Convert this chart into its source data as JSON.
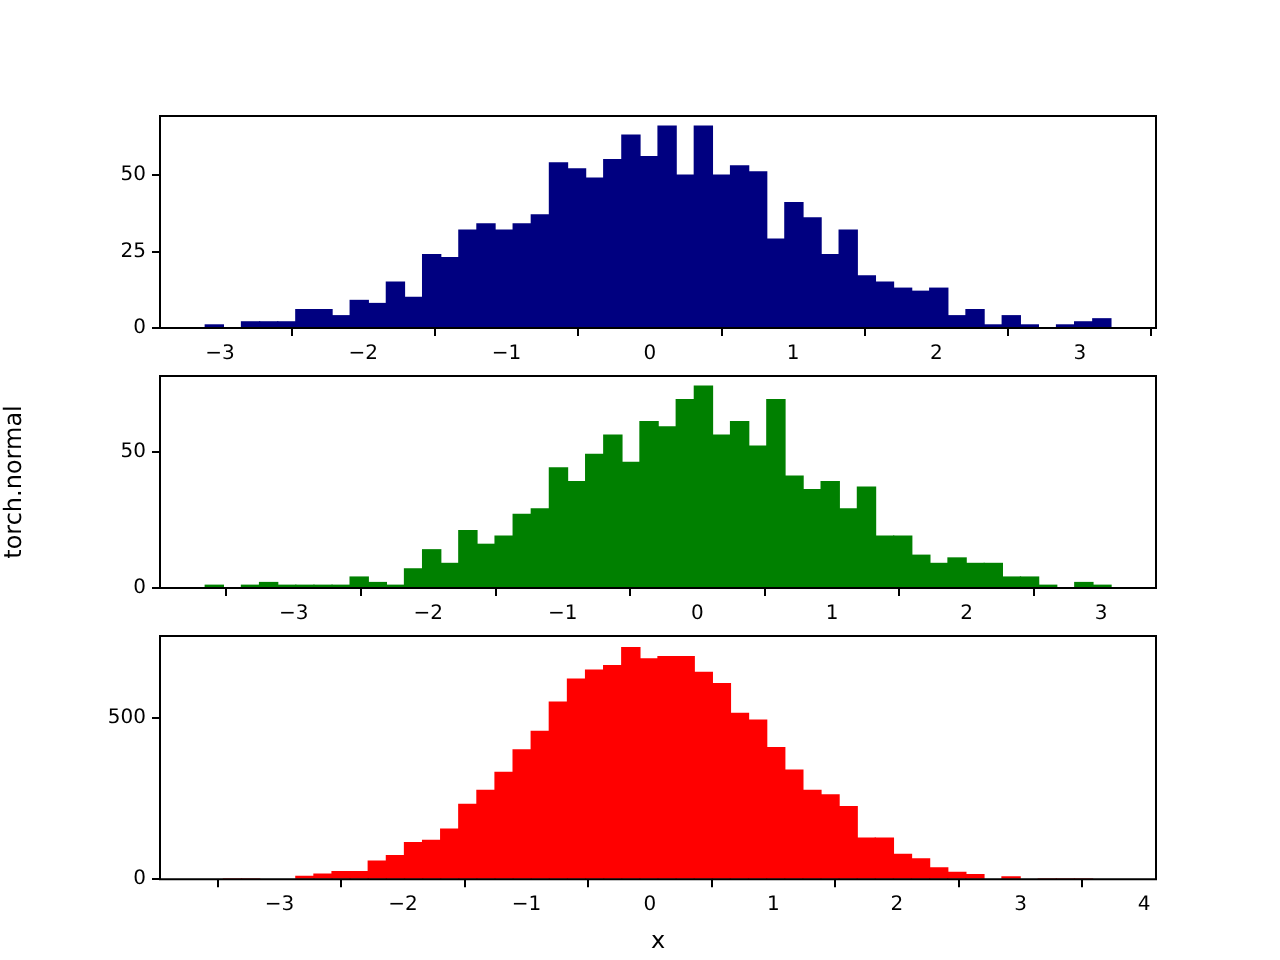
{
  "chart_data": [
    {
      "type": "histogram",
      "color": "#000080",
      "grid": false,
      "legend": false,
      "bins": [
        -3.103,
        -2.977,
        -2.85,
        -2.724,
        -2.597,
        -2.471,
        -2.345,
        -2.218,
        -2.092,
        -1.965,
        -1.839,
        -1.713,
        -1.586,
        -1.46,
        -1.333,
        -1.207,
        -1.081,
        -0.954,
        -0.828,
        -0.701,
        -0.575,
        -0.449,
        -0.322,
        -0.196,
        -0.069,
        0.057,
        0.183,
        0.31,
        0.436,
        0.563,
        0.689,
        0.815,
        0.942,
        1.068,
        1.195,
        1.321,
        1.447,
        1.574,
        1.7,
        1.827,
        1.953,
        2.079,
        2.206,
        2.332,
        2.459,
        2.585,
        2.711,
        2.838,
        2.964,
        3.091,
        3.217
      ],
      "values": [
        1,
        0,
        2,
        2,
        2,
        6,
        6,
        4,
        9,
        8,
        15,
        10,
        24,
        23,
        32,
        34,
        32,
        34,
        37,
        54,
        52,
        49,
        55,
        63,
        56,
        66,
        50,
        66,
        50,
        53,
        51,
        29,
        41,
        36,
        24,
        32,
        17,
        15,
        13,
        12,
        13,
        4,
        6,
        1,
        4,
        1,
        0,
        1,
        2,
        3
      ],
      "xlim": [
        -3.419,
        3.532
      ],
      "xticks": [
        -3,
        -2,
        -1,
        0,
        1,
        2,
        3
      ],
      "ylim": [
        0,
        69.3
      ],
      "yticks": [
        0,
        25,
        50
      ]
    },
    {
      "type": "histogram",
      "color": "#008000",
      "grid": false,
      "legend": false,
      "ylabel": "torch.normal",
      "bins": [
        -3.657,
        -3.522,
        -3.388,
        -3.253,
        -3.119,
        -2.984,
        -2.849,
        -2.715,
        -2.58,
        -2.446,
        -2.311,
        -2.176,
        -2.042,
        -1.907,
        -1.773,
        -1.638,
        -1.503,
        -1.369,
        -1.234,
        -1.1,
        -0.965,
        -0.83,
        -0.696,
        -0.561,
        -0.427,
        -0.292,
        -0.157,
        -0.023,
        0.112,
        0.246,
        0.381,
        0.516,
        0.65,
        0.785,
        0.919,
        1.054,
        1.189,
        1.323,
        1.458,
        1.592,
        1.727,
        1.862,
        1.996,
        2.131,
        2.265,
        2.4,
        2.535,
        2.669,
        2.804,
        2.938,
        3.073
      ],
      "values": [
        1,
        0,
        1,
        2,
        1,
        1,
        1,
        1,
        4,
        2,
        1,
        7,
        14,
        9,
        21,
        16,
        19,
        27,
        29,
        44,
        39,
        49,
        56,
        46,
        61,
        59,
        69,
        74,
        56,
        61,
        52,
        69,
        41,
        36,
        39,
        29,
        37,
        19,
        19,
        12,
        9,
        11,
        9,
        9,
        4,
        4,
        1,
        0,
        2,
        1
      ],
      "xlim": [
        -3.993,
        3.407
      ],
      "xticks": [
        -3,
        -2,
        -1,
        0,
        1,
        2,
        3
      ],
      "ylim": [
        0,
        77.7
      ],
      "yticks": [
        0,
        50
      ]
    },
    {
      "type": "histogram",
      "color": "#ff0000",
      "grid": false,
      "legend": false,
      "xlabel": "x",
      "bins": [
        -3.6,
        -3.453,
        -3.307,
        -3.16,
        -3.014,
        -2.867,
        -2.72,
        -2.574,
        -2.427,
        -2.281,
        -2.134,
        -1.987,
        -1.841,
        -1.694,
        -1.548,
        -1.401,
        -1.254,
        -1.108,
        -0.961,
        -0.815,
        -0.668,
        -0.521,
        -0.375,
        -0.228,
        -0.082,
        0.065,
        0.212,
        0.358,
        0.505,
        0.651,
        0.798,
        0.945,
        1.091,
        1.238,
        1.384,
        1.531,
        1.678,
        1.824,
        1.971,
        2.117,
        2.264,
        2.411,
        2.557,
        2.704,
        2.85,
        2.997,
        3.144,
        3.29,
        3.437,
        3.583,
        3.73
      ],
      "values": [
        null,
        0,
        0,
        null,
        null,
        9,
        16,
        23,
        23,
        56,
        73,
        113,
        120,
        155,
        232,
        275,
        331,
        401,
        458,
        549,
        620,
        648,
        662,
        718,
        683,
        690,
        690,
        641,
        606,
        514,
        493,
        408,
        338,
        275,
        261,
        225,
        127,
        127,
        77,
        63,
        35,
        21,
        14,
        null,
        7,
        null,
        0,
        0,
        0,
        null
      ],
      "xlim": [
        -3.967,
        4.097
      ],
      "xticks": [
        -3,
        -2,
        -1,
        0,
        1,
        2,
        3,
        4
      ],
      "ylim": [
        0,
        754
      ],
      "yticks": [
        0,
        500
      ]
    }
  ]
}
